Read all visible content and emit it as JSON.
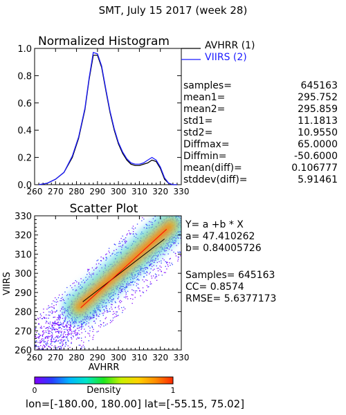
{
  "page_title": "SMT,  July 15 2017 (week 28)",
  "histogram": {
    "title": "Normalized Histogram",
    "legend": [
      {
        "label": "AVHRR (1)",
        "color": "#000000"
      },
      {
        "label": "VIIRS (2)",
        "color": "#1a1aff"
      }
    ],
    "stats": [
      {
        "label": "samples=",
        "value": "645163"
      },
      {
        "label": "mean1=",
        "value": "295.752"
      },
      {
        "label": "mean2=",
        "value": "295.859"
      },
      {
        "label": "std1=",
        "value": "11.1813"
      },
      {
        "label": "std2=",
        "value": "10.9550"
      },
      {
        "label": "Diffmax=",
        "value": "65.0000"
      },
      {
        "label": "Diffmin=",
        "value": "-50.6000"
      },
      {
        "label": "mean(diff)=",
        "value": "0.106777"
      },
      {
        "label": "stddev(diff)=",
        "value": "5.91461"
      }
    ]
  },
  "scatter": {
    "title": "Scatter Plot",
    "regression_lines": [
      "Y= a +b * X",
      "a= 47.410262",
      "b= 0.84005726"
    ],
    "stats_lines": [
      "Samples= 645163",
      "CC=  0.8574",
      "RMSE= 5.6377173"
    ]
  },
  "colorbar": {
    "label": "Density",
    "min_label": "0",
    "max_label": "1",
    "colors": [
      "#ffffff",
      "#7f00ff",
      "#2a3cff",
      "#00b4ff",
      "#00e6c8",
      "#1ee61e",
      "#c8f000",
      "#ffd200",
      "#ff8c00",
      "#ff2800"
    ]
  },
  "footer": "lon=[-180.00, 180.00] lat=[-55.15, 75.02]",
  "chart_data": [
    {
      "type": "line",
      "title": "Normalized Histogram",
      "xlabel": "",
      "ylabel": "",
      "xlim": [
        260,
        330
      ],
      "ylim": [
        0,
        1.0
      ],
      "xticks": [
        260,
        270,
        280,
        290,
        300,
        310,
        320,
        330
      ],
      "xtick_labels": [
        "260",
        "270",
        "280",
        "290",
        "300",
        "310",
        "320",
        "330"
      ],
      "yticks": [
        0.0,
        0.2,
        0.4,
        0.6,
        0.8,
        1.0
      ],
      "ytick_labels": [
        "0.0",
        "0.2",
        "0.4",
        "0.6",
        "0.8",
        "1.0"
      ],
      "x": [
        262,
        266,
        270,
        274,
        278,
        281,
        284,
        286,
        288,
        290,
        292,
        294,
        296,
        298,
        300,
        302,
        304,
        306,
        308,
        310,
        312,
        314,
        316,
        318,
        320,
        322,
        324,
        326,
        328
      ],
      "series": [
        {
          "name": "AVHRR (1)",
          "color": "#000000",
          "values": [
            0.0,
            0.01,
            0.04,
            0.09,
            0.2,
            0.34,
            0.55,
            0.77,
            0.95,
            0.95,
            0.86,
            0.69,
            0.53,
            0.4,
            0.3,
            0.23,
            0.18,
            0.15,
            0.14,
            0.14,
            0.15,
            0.16,
            0.18,
            0.17,
            0.12,
            0.04,
            0.01,
            0.0,
            0.0
          ]
        },
        {
          "name": "VIIRS (2)",
          "color": "#1a1aff",
          "values": [
            0.0,
            0.01,
            0.04,
            0.09,
            0.21,
            0.35,
            0.56,
            0.78,
            0.97,
            0.96,
            0.87,
            0.7,
            0.54,
            0.41,
            0.31,
            0.24,
            0.19,
            0.16,
            0.15,
            0.15,
            0.16,
            0.18,
            0.2,
            0.18,
            0.13,
            0.05,
            0.01,
            0.0,
            0.0
          ]
        }
      ]
    },
    {
      "type": "scatter",
      "title": "Scatter Plot",
      "xlabel": "AVHRR",
      "ylabel": "VIIRS",
      "xlim": [
        260,
        330
      ],
      "ylim": [
        260,
        330
      ],
      "xticks": [
        260,
        270,
        280,
        290,
        300,
        310,
        320,
        330
      ],
      "xtick_labels": [
        "260",
        "270",
        "280",
        "290",
        "300",
        "310",
        "320",
        "330"
      ],
      "yticks": [
        260,
        270,
        280,
        290,
        300,
        310,
        320,
        330
      ],
      "ytick_labels": [
        "260",
        "270",
        "280",
        "290",
        "300",
        "310",
        "320",
        "330"
      ],
      "density_core": {
        "x_range": [
          283,
          322
        ],
        "note": "dense red core along the 1:1 diagonal"
      },
      "regression": {
        "a": 47.410262,
        "b": 0.84005726,
        "x_range": [
          283,
          322
        ],
        "color": "#000000"
      },
      "one_to_one": {
        "x_range": [
          282,
          323
        ],
        "color": "#ff0000"
      }
    }
  ]
}
